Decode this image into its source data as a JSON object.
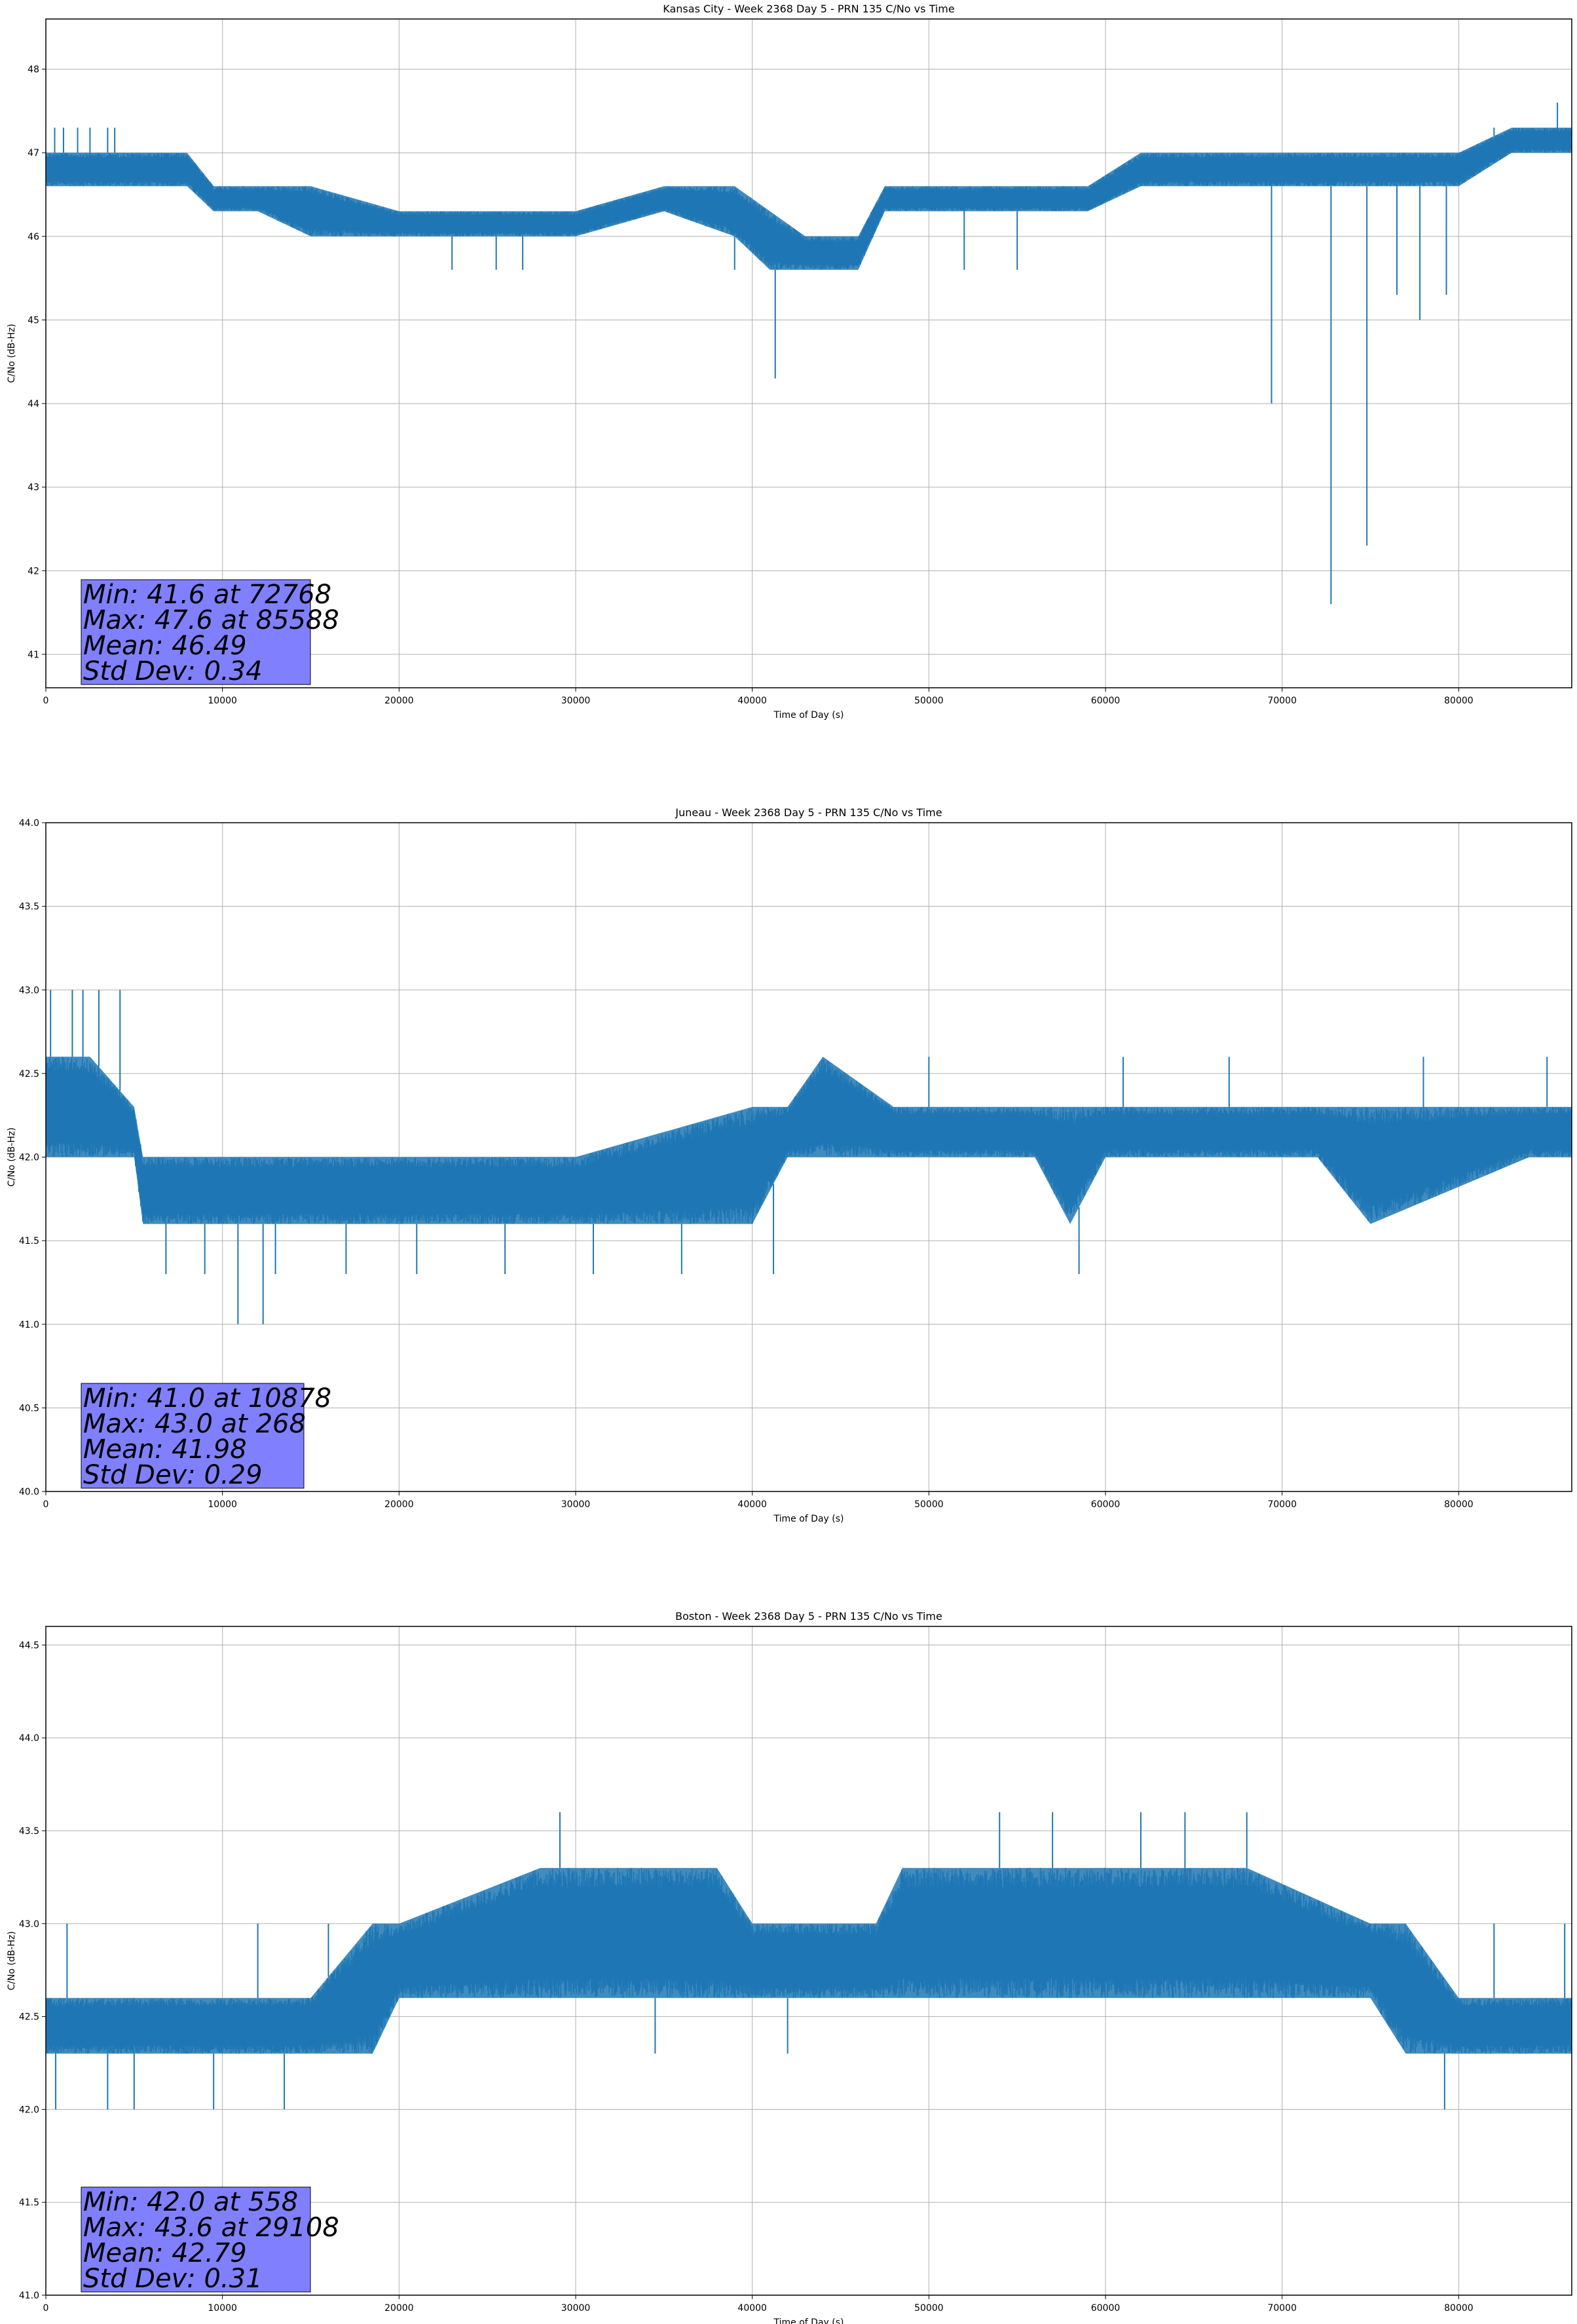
{
  "chart_data": [
    {
      "type": "line",
      "title": "Kansas City - Week 2368 Day 5 - PRN 135 C/No vs Time",
      "xlabel": "Time of Day (s)",
      "ylabel": "C/No (dB-Hz)",
      "xlim": [
        0,
        86400
      ],
      "ylim": [
        40.6,
        48.6
      ],
      "xticks": [
        0,
        10000,
        20000,
        30000,
        40000,
        50000,
        60000,
        70000,
        80000
      ],
      "yticks": [
        41,
        42,
        43,
        44,
        45,
        46,
        47,
        48
      ],
      "grid": true,
      "color": "#1f77b4",
      "stats_box_color": "#8080ff",
      "stats": [
        "Min: 41.6 at 72768",
        "Max: 47.6 at 85588",
        "Mean: 46.49",
        "Std Dev: 0.34"
      ],
      "envelope": {
        "x": [
          0,
          3000,
          6000,
          8000,
          9500,
          12000,
          15000,
          20000,
          25000,
          30000,
          35000,
          39000,
          41000,
          43000,
          46000,
          47500,
          50000,
          55000,
          59000,
          62000,
          67000,
          72000,
          77000,
          80000,
          83000,
          86400
        ],
        "lo": [
          46.6,
          46.6,
          46.6,
          46.6,
          46.3,
          46.3,
          46.0,
          46.0,
          46.0,
          46.0,
          46.3,
          46.0,
          45.6,
          45.6,
          45.6,
          46.3,
          46.3,
          46.3,
          46.3,
          46.6,
          46.6,
          46.6,
          46.6,
          46.6,
          47.0,
          47.0
        ],
        "hi": [
          47.0,
          47.0,
          47.0,
          47.0,
          46.6,
          46.6,
          46.6,
          46.3,
          46.3,
          46.3,
          46.6,
          46.6,
          46.3,
          46.0,
          46.0,
          46.6,
          46.6,
          46.6,
          46.6,
          47.0,
          47.0,
          47.0,
          47.0,
          47.0,
          47.3,
          47.3
        ]
      },
      "spikes": [
        [
          500,
          47.3
        ],
        [
          1000,
          47.3
        ],
        [
          1800,
          47.3
        ],
        [
          2500,
          47.3
        ],
        [
          3500,
          47.3
        ],
        [
          3900,
          47.3
        ],
        [
          23000,
          45.6
        ],
        [
          25500,
          45.6
        ],
        [
          27000,
          45.6
        ],
        [
          39000,
          45.6
        ],
        [
          41300,
          44.3
        ],
        [
          52000,
          45.6
        ],
        [
          55000,
          45.6
        ],
        [
          69400,
          44.0
        ],
        [
          72768,
          41.6
        ],
        [
          74800,
          42.3
        ],
        [
          76500,
          45.3
        ],
        [
          77800,
          45.0
        ],
        [
          79300,
          45.3
        ],
        [
          82000,
          47.3
        ],
        [
          85588,
          47.6
        ]
      ]
    },
    {
      "type": "line",
      "title": "Juneau - Week 2368 Day 5 - PRN 135 C/No vs Time",
      "xlabel": "Time of Day (s)",
      "ylabel": "C/No (dB-Hz)",
      "xlim": [
        0,
        86400
      ],
      "ylim": [
        40.0,
        44.0
      ],
      "xticks": [
        0,
        10000,
        20000,
        30000,
        40000,
        50000,
        60000,
        70000,
        80000
      ],
      "yticks": [
        40.0,
        40.5,
        41.0,
        41.5,
        42.0,
        42.5,
        43.0,
        43.5,
        44.0
      ],
      "grid": true,
      "color": "#1f77b4",
      "stats_box_color": "#8080ff",
      "stats": [
        "Min: 41.0 at 10878",
        "Max: 43.0 at 268",
        "Mean: 41.98",
        "Std Dev: 0.29"
      ],
      "envelope": {
        "x": [
          0,
          2500,
          5000,
          5500,
          10000,
          15000,
          20000,
          30000,
          40000,
          42000,
          44000,
          48000,
          56000,
          58000,
          60000,
          66000,
          72000,
          75000,
          84000,
          86400
        ],
        "lo": [
          42.0,
          42.0,
          42.0,
          41.6,
          41.6,
          41.6,
          41.6,
          41.6,
          41.6,
          42.0,
          42.0,
          42.0,
          42.0,
          41.6,
          42.0,
          42.0,
          42.0,
          41.6,
          42.0,
          42.0
        ],
        "hi": [
          42.6,
          42.6,
          42.3,
          42.0,
          42.0,
          42.0,
          42.0,
          42.0,
          42.3,
          42.3,
          42.6,
          42.3,
          42.3,
          42.3,
          42.3,
          42.3,
          42.3,
          42.3,
          42.3,
          42.3
        ]
      },
      "spikes": [
        [
          268,
          43.0
        ],
        [
          1500,
          43.0
        ],
        [
          2100,
          43.0
        ],
        [
          3000,
          43.0
        ],
        [
          4200,
          43.0
        ],
        [
          6800,
          41.3
        ],
        [
          9000,
          41.3
        ],
        [
          10878,
          41.0
        ],
        [
          12300,
          41.0
        ],
        [
          13000,
          41.3
        ],
        [
          17000,
          41.3
        ],
        [
          21000,
          41.3
        ],
        [
          26000,
          41.3
        ],
        [
          31000,
          41.3
        ],
        [
          36000,
          41.3
        ],
        [
          41200,
          41.3
        ],
        [
          58500,
          41.3
        ],
        [
          50000,
          42.6
        ],
        [
          61000,
          42.6
        ],
        [
          67000,
          42.6
        ],
        [
          78000,
          42.6
        ],
        [
          85000,
          42.6
        ]
      ]
    },
    {
      "type": "line",
      "title": "Boston - Week 2368 Day 5 - PRN 135 C/No vs Time",
      "xlabel": "Time of Day (s)",
      "ylabel": "C/No (dB-Hz)",
      "xlim": [
        0,
        86400
      ],
      "ylim": [
        41.0,
        44.6
      ],
      "xticks": [
        0,
        10000,
        20000,
        30000,
        40000,
        50000,
        60000,
        70000,
        80000
      ],
      "yticks": [
        41.0,
        41.5,
        42.0,
        42.5,
        43.0,
        43.5,
        44.0,
        44.5
      ],
      "grid": true,
      "color": "#1f77b4",
      "stats_box_color": "#8080ff",
      "stats": [
        "Min: 42.0 at 558",
        "Max: 43.6 at 29108",
        "Mean: 42.79",
        "Std Dev: 0.31"
      ],
      "envelope": {
        "x": [
          0,
          5000,
          10000,
          15000,
          18500,
          20000,
          28000,
          30000,
          38000,
          40000,
          47000,
          48500,
          60000,
          68000,
          75000,
          77000,
          80000,
          86400
        ],
        "lo": [
          42.3,
          42.3,
          42.3,
          42.3,
          42.3,
          42.6,
          42.6,
          42.6,
          42.6,
          42.6,
          42.6,
          42.6,
          42.6,
          42.6,
          42.6,
          42.3,
          42.3,
          42.3
        ],
        "hi": [
          42.6,
          42.6,
          42.6,
          42.6,
          43.0,
          43.0,
          43.3,
          43.3,
          43.3,
          43.0,
          43.0,
          43.3,
          43.3,
          43.3,
          43.0,
          43.0,
          42.6,
          42.6
        ]
      },
      "spikes": [
        [
          558,
          42.0
        ],
        [
          1200,
          43.0
        ],
        [
          3500,
          42.0
        ],
        [
          5000,
          42.0
        ],
        [
          9500,
          42.0
        ],
        [
          13500,
          42.0
        ],
        [
          12000,
          43.0
        ],
        [
          16000,
          43.0
        ],
        [
          29108,
          43.6
        ],
        [
          34500,
          42.3
        ],
        [
          42000,
          42.3
        ],
        [
          54000,
          43.6
        ],
        [
          57000,
          43.6
        ],
        [
          62000,
          43.6
        ],
        [
          64500,
          43.6
        ],
        [
          68000,
          43.6
        ],
        [
          79200,
          42.0
        ],
        [
          82000,
          43.0
        ],
        [
          86000,
          43.0
        ]
      ]
    }
  ]
}
